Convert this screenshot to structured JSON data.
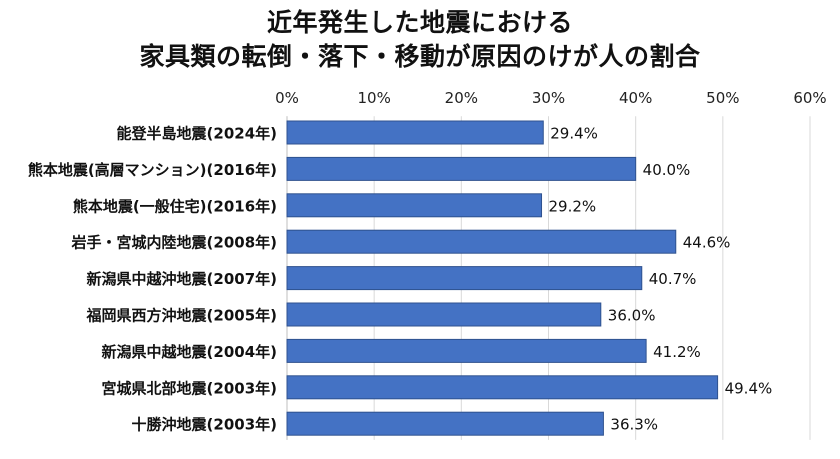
{
  "chart_data": {
    "type": "bar",
    "orientation": "horizontal",
    "title_lines": [
      "近年発生した地震における",
      "家具類の転倒・落下・移動が原因のけが人の割合"
    ],
    "categories": [
      "能登半島地震(2024年)",
      "熊本地震(高層マンション)(2016年)",
      "熊本地震(一般住宅)(2016年)",
      "岩手・宮城内陸地震(2008年)",
      "新潟県中越沖地震(2007年)",
      "福岡県西方沖地震(2005年)",
      "新潟県中越地震(2004年)",
      "宮城県北部地震(2003年)",
      "十勝沖地震(2003年)"
    ],
    "values": [
      29.4,
      40.0,
      29.2,
      44.6,
      40.7,
      36.0,
      41.2,
      49.4,
      36.3
    ],
    "value_labels": [
      "29.4%",
      "40.0%",
      "29.2%",
      "44.6%",
      "40.7%",
      "36.0%",
      "41.2%",
      "49.4%",
      "36.3%"
    ],
    "x_ticks": [
      "0%",
      "10%",
      "20%",
      "30%",
      "40%",
      "50%",
      "60%"
    ],
    "xlim": [
      0,
      60
    ],
    "x_axis_position": "top",
    "grid": true,
    "legend": "none",
    "colors": {
      "bar": "#4472c4",
      "bar_border": "#2f528f",
      "grid": "#d9d9d9"
    }
  }
}
